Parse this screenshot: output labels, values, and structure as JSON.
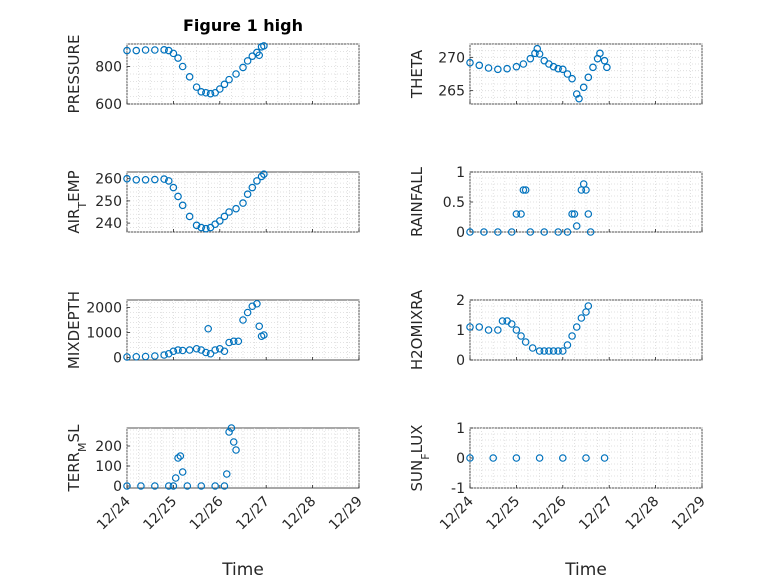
{
  "figure": {
    "title": "Figure 1 high"
  },
  "chart_data": [
    {
      "type": "scatter",
      "id": "pressure",
      "ylabel": "PRESSURE",
      "ylim": [
        600,
        920
      ],
      "yticks": [
        600,
        800
      ],
      "xlim": [
        0,
        5
      ],
      "points": [
        [
          0,
          885
        ],
        [
          0.2,
          885
        ],
        [
          0.4,
          888
        ],
        [
          0.6,
          888
        ],
        [
          0.8,
          889
        ],
        [
          0.9,
          885
        ],
        [
          1.0,
          870
        ],
        [
          1.1,
          845
        ],
        [
          1.2,
          800
        ],
        [
          1.35,
          745
        ],
        [
          1.5,
          690
        ],
        [
          1.6,
          665
        ],
        [
          1.7,
          660
        ],
        [
          1.8,
          655
        ],
        [
          1.9,
          660
        ],
        [
          2.0,
          680
        ],
        [
          2.1,
          705
        ],
        [
          2.2,
          730
        ],
        [
          2.35,
          760
        ],
        [
          2.5,
          795
        ],
        [
          2.6,
          830
        ],
        [
          2.7,
          855
        ],
        [
          2.8,
          875
        ],
        [
          2.85,
          860
        ],
        [
          2.9,
          905
        ],
        [
          2.95,
          910
        ]
      ]
    },
    {
      "type": "scatter",
      "id": "theta",
      "ylabel": "THETA",
      "ylim": [
        263,
        272
      ],
      "yticks": [
        265,
        270
      ],
      "xlim": [
        0,
        5
      ],
      "points": [
        [
          0,
          269.2
        ],
        [
          0.2,
          268.8
        ],
        [
          0.4,
          268.4
        ],
        [
          0.6,
          268.2
        ],
        [
          0.8,
          268.3
        ],
        [
          1.0,
          268.6
        ],
        [
          1.15,
          269.0
        ],
        [
          1.3,
          269.8
        ],
        [
          1.4,
          270.6
        ],
        [
          1.45,
          271.3
        ],
        [
          1.5,
          270.5
        ],
        [
          1.6,
          269.5
        ],
        [
          1.7,
          269.0
        ],
        [
          1.8,
          268.6
        ],
        [
          1.9,
          268.3
        ],
        [
          2.0,
          268.2
        ],
        [
          2.1,
          267.5
        ],
        [
          2.2,
          266.8
        ],
        [
          2.3,
          264.5
        ],
        [
          2.35,
          263.8
        ],
        [
          2.45,
          265.5
        ],
        [
          2.55,
          267.0
        ],
        [
          2.65,
          268.5
        ],
        [
          2.75,
          269.8
        ],
        [
          2.8,
          270.6
        ],
        [
          2.9,
          269.5
        ],
        [
          2.95,
          268.5
        ]
      ]
    },
    {
      "type": "scatter",
      "id": "air_temp",
      "ylabel": "AIR_TEMP",
      "ylim": [
        236,
        263
      ],
      "yticks": [
        240,
        250,
        260
      ],
      "xlim": [
        0,
        5
      ],
      "points": [
        [
          0,
          260
        ],
        [
          0.2,
          259.5
        ],
        [
          0.4,
          259.5
        ],
        [
          0.6,
          259.6
        ],
        [
          0.8,
          259.8
        ],
        [
          0.9,
          259
        ],
        [
          1.0,
          256
        ],
        [
          1.1,
          252
        ],
        [
          1.2,
          248
        ],
        [
          1.35,
          243
        ],
        [
          1.5,
          239
        ],
        [
          1.6,
          238
        ],
        [
          1.7,
          237.5
        ],
        [
          1.8,
          238
        ],
        [
          1.9,
          239.5
        ],
        [
          2.0,
          241
        ],
        [
          2.1,
          243
        ],
        [
          2.2,
          245
        ],
        [
          2.35,
          246.5
        ],
        [
          2.5,
          249
        ],
        [
          2.6,
          253
        ],
        [
          2.7,
          256
        ],
        [
          2.8,
          259
        ],
        [
          2.9,
          261
        ],
        [
          2.95,
          262
        ]
      ]
    },
    {
      "type": "scatter",
      "id": "rainfall",
      "ylabel": "RAINFALL",
      "ylim": [
        0,
        1
      ],
      "yticks": [
        0,
        0.5,
        1
      ],
      "xlim": [
        0,
        5
      ],
      "points": [
        [
          0,
          0
        ],
        [
          0.3,
          0
        ],
        [
          0.6,
          0
        ],
        [
          0.9,
          0
        ],
        [
          1.0,
          0.3
        ],
        [
          1.1,
          0.3
        ],
        [
          1.15,
          0.7
        ],
        [
          1.2,
          0.7
        ],
        [
          1.3,
          0
        ],
        [
          1.6,
          0
        ],
        [
          1.9,
          0
        ],
        [
          2.1,
          0
        ],
        [
          2.2,
          0.3
        ],
        [
          2.25,
          0.3
        ],
        [
          2.3,
          0.1
        ],
        [
          2.4,
          0.7
        ],
        [
          2.45,
          0.8
        ],
        [
          2.5,
          0.7
        ],
        [
          2.55,
          0.3
        ],
        [
          2.6,
          0
        ]
      ]
    },
    {
      "type": "scatter",
      "id": "mixdepth",
      "ylabel": "MIXDEPTH",
      "ylim": [
        -100,
        2300
      ],
      "yticks": [
        0,
        1000,
        2000
      ],
      "xlim": [
        0,
        5
      ],
      "points": [
        [
          0,
          20
        ],
        [
          0.2,
          30
        ],
        [
          0.4,
          40
        ],
        [
          0.6,
          60
        ],
        [
          0.8,
          100
        ],
        [
          0.9,
          150
        ],
        [
          1.0,
          250
        ],
        [
          1.1,
          300
        ],
        [
          1.2,
          280
        ],
        [
          1.35,
          300
        ],
        [
          1.5,
          350
        ],
        [
          1.6,
          300
        ],
        [
          1.7,
          200
        ],
        [
          1.75,
          1150
        ],
        [
          1.8,
          150
        ],
        [
          1.9,
          300
        ],
        [
          2.0,
          350
        ],
        [
          2.1,
          250
        ],
        [
          2.2,
          600
        ],
        [
          2.3,
          650
        ],
        [
          2.4,
          650
        ],
        [
          2.5,
          1500
        ],
        [
          2.6,
          1800
        ],
        [
          2.7,
          2050
        ],
        [
          2.8,
          2150
        ],
        [
          2.85,
          1250
        ],
        [
          2.9,
          850
        ],
        [
          2.95,
          900
        ]
      ]
    },
    {
      "type": "scatter",
      "id": "h2omixra",
      "ylabel": "H2OMIXRA",
      "ylim": [
        0,
        2
      ],
      "yticks": [
        0,
        1,
        2
      ],
      "xlim": [
        0,
        5
      ],
      "points": [
        [
          0,
          1.1
        ],
        [
          0.2,
          1.1
        ],
        [
          0.4,
          1.0
        ],
        [
          0.6,
          1.0
        ],
        [
          0.7,
          1.3
        ],
        [
          0.8,
          1.3
        ],
        [
          0.9,
          1.2
        ],
        [
          1.0,
          1.0
        ],
        [
          1.1,
          0.8
        ],
        [
          1.2,
          0.6
        ],
        [
          1.35,
          0.4
        ],
        [
          1.5,
          0.3
        ],
        [
          1.6,
          0.3
        ],
        [
          1.7,
          0.3
        ],
        [
          1.8,
          0.3
        ],
        [
          1.9,
          0.3
        ],
        [
          2.0,
          0.3
        ],
        [
          2.1,
          0.5
        ],
        [
          2.2,
          0.8
        ],
        [
          2.3,
          1.1
        ],
        [
          2.4,
          1.4
        ],
        [
          2.5,
          1.6
        ],
        [
          2.55,
          1.8
        ]
      ]
    },
    {
      "type": "scatter",
      "id": "terr_msl",
      "ylabel": "TERR_MSL",
      "ylim": [
        -10,
        290
      ],
      "yticks": [
        0,
        100,
        200
      ],
      "xlim": [
        0,
        5
      ],
      "points": [
        [
          0,
          0
        ],
        [
          0.3,
          0
        ],
        [
          0.6,
          0
        ],
        [
          0.9,
          0
        ],
        [
          1.0,
          0
        ],
        [
          1.05,
          40
        ],
        [
          1.1,
          140
        ],
        [
          1.15,
          150
        ],
        [
          1.2,
          70
        ],
        [
          1.3,
          0
        ],
        [
          1.6,
          0
        ],
        [
          1.9,
          0
        ],
        [
          2.1,
          0
        ],
        [
          2.15,
          60
        ],
        [
          2.2,
          270
        ],
        [
          2.25,
          290
        ],
        [
          2.3,
          220
        ],
        [
          2.35,
          180
        ]
      ]
    },
    {
      "type": "scatter",
      "id": "sun_flux",
      "ylabel": "SUN_FLUX",
      "ylim": [
        -1,
        1
      ],
      "yticks": [
        -1,
        0,
        1
      ],
      "xlim": [
        0,
        5
      ],
      "points": [
        [
          0,
          0
        ],
        [
          0.5,
          0
        ],
        [
          1.0,
          0
        ],
        [
          1.5,
          0
        ],
        [
          2.0,
          0
        ],
        [
          2.5,
          0
        ],
        [
          2.9,
          0
        ]
      ]
    }
  ],
  "xaxis": {
    "ticks": [
      "12/24",
      "12/25",
      "12/26",
      "12/27",
      "12/28",
      "12/29"
    ],
    "label": "Time"
  }
}
